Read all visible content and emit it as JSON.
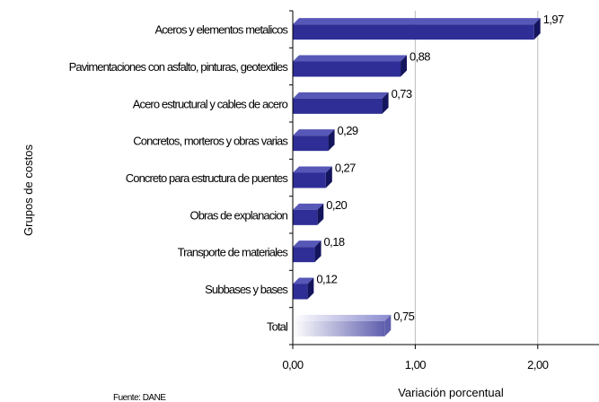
{
  "chart_data": {
    "type": "bar",
    "orientation": "horizontal",
    "title": "",
    "xlabel": "Variación porcentual",
    "ylabel": "Grupos de costos",
    "source": "Fuente: DANE",
    "categories": [
      "Aceros y elementos metalicos",
      "Pavimentaciones con asfalto, pinturas, geotextiles",
      "Acero estructural y cables de acero",
      "Concretos, morteros y obras varias",
      "Concreto para estructura de puentes",
      "Obras de explanacion",
      "Transporte de materiales",
      "Subbases y bases",
      "Total"
    ],
    "values": [
      1.97,
      0.88,
      0.73,
      0.29,
      0.27,
      0.2,
      0.18,
      0.12,
      0.75
    ],
    "value_labels": [
      "1,97",
      "0,88",
      "0,73",
      "0,29",
      "0,27",
      "0,20",
      "0,18",
      "0,12",
      "0,75"
    ],
    "xlim": [
      0,
      2.5
    ],
    "xticks": [
      0,
      1,
      2
    ],
    "xtick_labels": [
      "0,00",
      "1,00",
      "2,00"
    ],
    "grid": "vertical",
    "legend": "none",
    "colors": {
      "bar_front": "#2e2e96",
      "bar_top": "#5757b8",
      "bar_side": "#15155e",
      "total_front": "#5f5fae",
      "total_light": "#ffffff",
      "grid": "#bdbdbd",
      "axis": "#000000"
    }
  }
}
